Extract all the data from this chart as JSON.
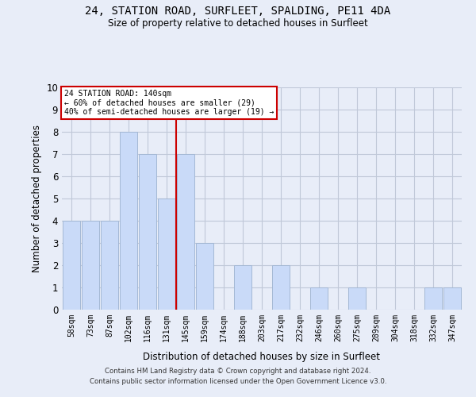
{
  "title": "24, STATION ROAD, SURFLEET, SPALDING, PE11 4DA",
  "subtitle": "Size of property relative to detached houses in Surfleet",
  "xlabel": "Distribution of detached houses by size in Surfleet",
  "ylabel": "Number of detached properties",
  "categories": [
    "58sqm",
    "73sqm",
    "87sqm",
    "102sqm",
    "116sqm",
    "131sqm",
    "145sqm",
    "159sqm",
    "174sqm",
    "188sqm",
    "203sqm",
    "217sqm",
    "232sqm",
    "246sqm",
    "260sqm",
    "275sqm",
    "289sqm",
    "304sqm",
    "318sqm",
    "332sqm",
    "347sqm"
  ],
  "values": [
    4,
    4,
    4,
    8,
    7,
    5,
    7,
    3,
    0,
    2,
    0,
    2,
    0,
    1,
    0,
    1,
    0,
    0,
    0,
    1,
    1
  ],
  "bar_color": "#c9daf8",
  "bar_edgecolor": "#a4b8d4",
  "vline_index": 6,
  "vline_color": "#cc0000",
  "ylim": [
    0,
    10
  ],
  "yticks": [
    0,
    1,
    2,
    3,
    4,
    5,
    6,
    7,
    8,
    9,
    10
  ],
  "annotation_title": "24 STATION ROAD: 140sqm",
  "annotation_line1": "← 60% of detached houses are smaller (29)",
  "annotation_line2": "40% of semi-detached houses are larger (19) →",
  "annotation_box_color": "#ffffff",
  "annotation_box_edgecolor": "#cc0000",
  "grid_color": "#c0c8d8",
  "bg_color": "#e8edf8",
  "footer1": "Contains HM Land Registry data © Crown copyright and database right 2024.",
  "footer2": "Contains public sector information licensed under the Open Government Licence v3.0."
}
